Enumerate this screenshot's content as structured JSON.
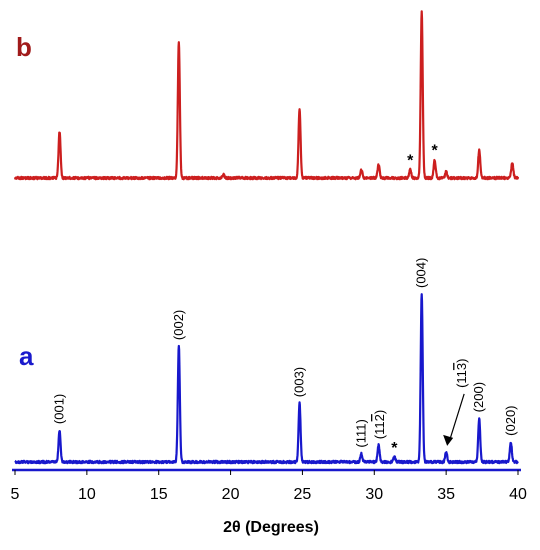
{
  "chart_data": {
    "type": "line",
    "xlabel": "2θ (Degrees)",
    "ylabel": "",
    "xlim": [
      5,
      40
    ],
    "xticks": [
      5,
      10,
      15,
      20,
      25,
      30,
      35,
      40
    ],
    "grid": false,
    "series": [
      {
        "name": "b",
        "color": "#cc1f1f",
        "label_color": "#a01a1a",
        "peaks": [
          {
            "x": 8.1,
            "h": 0.28
          },
          {
            "x": 16.4,
            "h": 0.82
          },
          {
            "x": 19.5,
            "h": 0.02
          },
          {
            "x": 24.8,
            "h": 0.42
          },
          {
            "x": 29.1,
            "h": 0.05
          },
          {
            "x": 30.3,
            "h": 0.08
          },
          {
            "x": 32.5,
            "h": 0.05
          },
          {
            "x": 33.3,
            "h": 1.0
          },
          {
            "x": 34.2,
            "h": 0.11
          },
          {
            "x": 35.0,
            "h": 0.04
          },
          {
            "x": 37.3,
            "h": 0.17
          },
          {
            "x": 39.6,
            "h": 0.09
          }
        ],
        "markers": [
          {
            "x": 32.5,
            "text": "*"
          },
          {
            "x": 34.2,
            "text": "*"
          }
        ]
      },
      {
        "name": "a",
        "color": "#1818cc",
        "label_color": "#1a1acc",
        "peaks": [
          {
            "x": 8.1,
            "h": 0.19
          },
          {
            "x": 16.4,
            "h": 0.69
          },
          {
            "x": 24.8,
            "h": 0.35
          },
          {
            "x": 29.1,
            "h": 0.05
          },
          {
            "x": 30.3,
            "h": 0.1
          },
          {
            "x": 31.4,
            "h": 0.03
          },
          {
            "x": 33.3,
            "h": 1.0
          },
          {
            "x": 35.0,
            "h": 0.06
          },
          {
            "x": 37.3,
            "h": 0.26
          },
          {
            "x": 39.5,
            "h": 0.12
          }
        ],
        "markers": [
          {
            "x": 8.1,
            "text": "(001)"
          },
          {
            "x": 16.4,
            "text": "(002)"
          },
          {
            "x": 24.8,
            "text": "(003)"
          },
          {
            "x": 29.1,
            "text": "(111)"
          },
          {
            "x": 30.4,
            "text": "(11",
            "bar": "2",
            "close": ")"
          },
          {
            "x": 31.4,
            "text": "*"
          },
          {
            "x": 33.3,
            "text": "(004)"
          },
          {
            "x": 35.0,
            "text": "(11",
            "bar": "3",
            "close": ")",
            "arrow": true
          },
          {
            "x": 37.3,
            "text": "(200)"
          },
          {
            "x": 39.5,
            "text": "(020)"
          }
        ]
      }
    ]
  }
}
